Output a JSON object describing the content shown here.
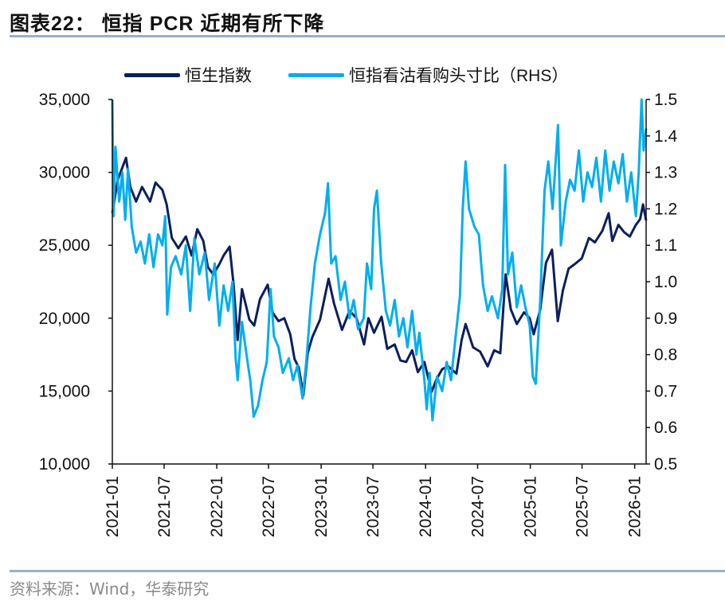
{
  "header": {
    "title": "图表22： 恒指 PCR 近期有所下降"
  },
  "footer": {
    "source": "资料来源：Wind，华泰研究"
  },
  "colors": {
    "hsi": "#0b1f5c",
    "pcr": "#00aeef",
    "rule": "#9aaec8"
  },
  "chart_data": {
    "type": "line",
    "title": "",
    "legend_position": "top",
    "grid": false,
    "x_ticks": [
      "2021-01",
      "2021-07",
      "2022-01",
      "2022-07",
      "2023-01",
      "2023-07",
      "2024-01",
      "2024-07",
      "2025-01",
      "2025-07",
      "2026-01"
    ],
    "xlim": [
      "2021-01-01",
      "2026-02-10"
    ],
    "y_left": {
      "ylim": [
        10000,
        35000
      ],
      "ticks": [
        "10,000",
        "15,000",
        "20,000",
        "25,000",
        "30,000",
        "35,000"
      ],
      "tick_values": [
        10000,
        15000,
        20000,
        25000,
        30000,
        35000
      ]
    },
    "y_right": {
      "ylim": [
        0.5,
        1.5
      ],
      "ticks": [
        "0.5",
        "0.6",
        "0.7",
        "0.8",
        "0.9",
        "1.0",
        "1.1",
        "1.2",
        "1.3",
        "1.4",
        "1.5"
      ],
      "tick_values": [
        0.5,
        0.6,
        0.7,
        0.8,
        0.9,
        1.0,
        1.1,
        1.2,
        1.3,
        1.4,
        1.5
      ]
    },
    "series": [
      {
        "name": "恒生指数",
        "axis": "left",
        "points": [
          [
            "2021-01-01",
            27200
          ],
          [
            "2021-01-20",
            29500
          ],
          [
            "2021-02-18",
            31000
          ],
          [
            "2021-03-05",
            29000
          ],
          [
            "2021-03-25",
            28000
          ],
          [
            "2021-04-15",
            29000
          ],
          [
            "2021-05-13",
            28000
          ],
          [
            "2021-06-01",
            29300
          ],
          [
            "2021-06-25",
            28800
          ],
          [
            "2021-07-10",
            27800
          ],
          [
            "2021-07-28",
            25500
          ],
          [
            "2021-08-20",
            24800
          ],
          [
            "2021-09-15",
            25600
          ],
          [
            "2021-10-05",
            24300
          ],
          [
            "2021-10-25",
            26100
          ],
          [
            "2021-11-15",
            25300
          ],
          [
            "2021-12-01",
            23500
          ],
          [
            "2021-12-20",
            23000
          ],
          [
            "2022-01-10",
            23700
          ],
          [
            "2022-01-25",
            24300
          ],
          [
            "2022-02-15",
            24900
          ],
          [
            "2022-03-01",
            22300
          ],
          [
            "2022-03-15",
            18500
          ],
          [
            "2022-03-30",
            22000
          ],
          [
            "2022-04-25",
            19900
          ],
          [
            "2022-05-12",
            19500
          ],
          [
            "2022-06-01",
            21300
          ],
          [
            "2022-06-28",
            22300
          ],
          [
            "2022-07-15",
            20400
          ],
          [
            "2022-08-05",
            19800
          ],
          [
            "2022-08-25",
            20000
          ],
          [
            "2022-09-15",
            18900
          ],
          [
            "2022-09-30",
            17200
          ],
          [
            "2022-10-15",
            16600
          ],
          [
            "2022-10-31",
            14700
          ],
          [
            "2022-11-15",
            17600
          ],
          [
            "2022-12-01",
            18700
          ],
          [
            "2022-12-28",
            19900
          ],
          [
            "2023-01-27",
            22700
          ],
          [
            "2023-02-15",
            21000
          ],
          [
            "2023-03-15",
            19200
          ],
          [
            "2023-04-10",
            20500
          ],
          [
            "2023-05-05",
            20000
          ],
          [
            "2023-05-31",
            18200
          ],
          [
            "2023-06-15",
            20000
          ],
          [
            "2023-07-05",
            19000
          ],
          [
            "2023-07-31",
            20100
          ],
          [
            "2023-08-20",
            17900
          ],
          [
            "2023-09-15",
            18200
          ],
          [
            "2023-10-05",
            17100
          ],
          [
            "2023-10-25",
            17000
          ],
          [
            "2023-11-15",
            17800
          ],
          [
            "2023-12-05",
            16300
          ],
          [
            "2023-12-28",
            17000
          ],
          [
            "2024-01-22",
            14950
          ],
          [
            "2024-02-08",
            15800
          ],
          [
            "2024-02-28",
            16500
          ],
          [
            "2024-03-20",
            16700
          ],
          [
            "2024-04-18",
            16200
          ],
          [
            "2024-05-06",
            18500
          ],
          [
            "2024-05-20",
            19600
          ],
          [
            "2024-06-15",
            18000
          ],
          [
            "2024-07-10",
            17700
          ],
          [
            "2024-08-05",
            16700
          ],
          [
            "2024-08-28",
            17800
          ],
          [
            "2024-09-18",
            17600
          ],
          [
            "2024-10-07",
            23000
          ],
          [
            "2024-10-25",
            20600
          ],
          [
            "2024-11-15",
            19600
          ],
          [
            "2024-12-10",
            20400
          ],
          [
            "2024-12-30",
            20000
          ],
          [
            "2025-01-13",
            18900
          ],
          [
            "2025-02-05",
            20600
          ],
          [
            "2025-02-25",
            23800
          ],
          [
            "2025-03-18",
            24700
          ],
          [
            "2025-04-07",
            19800
          ],
          [
            "2025-04-25",
            21900
          ],
          [
            "2025-05-15",
            23400
          ],
          [
            "2025-06-05",
            23700
          ],
          [
            "2025-06-30",
            24100
          ],
          [
            "2025-07-25",
            25500
          ],
          [
            "2025-08-15",
            25200
          ],
          [
            "2025-09-10",
            26000
          ],
          [
            "2025-10-02",
            27200
          ],
          [
            "2025-10-15",
            25300
          ],
          [
            "2025-11-05",
            26400
          ],
          [
            "2025-11-25",
            25900
          ],
          [
            "2025-12-15",
            25600
          ],
          [
            "2026-01-05",
            26400
          ],
          [
            "2026-01-20",
            26800
          ],
          [
            "2026-01-30",
            27800
          ],
          [
            "2026-02-10",
            26700
          ]
        ]
      },
      {
        "name": "恒指看沽看购头寸比（RHS）",
        "axis": "right",
        "points": [
          [
            "2021-01-01",
            1.5
          ],
          [
            "2021-01-05",
            1.18
          ],
          [
            "2021-01-12",
            1.37
          ],
          [
            "2021-01-25",
            1.22
          ],
          [
            "2021-02-05",
            1.3
          ],
          [
            "2021-02-15",
            1.17
          ],
          [
            "2021-02-25",
            1.31
          ],
          [
            "2021-03-10",
            1.15
          ],
          [
            "2021-03-25",
            1.08
          ],
          [
            "2021-04-10",
            1.11
          ],
          [
            "2021-04-25",
            1.05
          ],
          [
            "2021-05-10",
            1.13
          ],
          [
            "2021-05-25",
            1.04
          ],
          [
            "2021-06-10",
            1.13
          ],
          [
            "2021-06-25",
            1.1
          ],
          [
            "2021-07-05",
            1.18
          ],
          [
            "2021-07-12",
            0.91
          ],
          [
            "2021-07-25",
            1.04
          ],
          [
            "2021-08-10",
            1.07
          ],
          [
            "2021-08-30",
            1.02
          ],
          [
            "2021-09-15",
            1.1
          ],
          [
            "2021-09-30",
            0.92
          ],
          [
            "2021-10-15",
            1.12
          ],
          [
            "2021-11-01",
            1.02
          ],
          [
            "2021-11-20",
            1.08
          ],
          [
            "2021-12-05",
            0.95
          ],
          [
            "2021-12-25",
            1.05
          ],
          [
            "2022-01-10",
            0.88
          ],
          [
            "2022-01-25",
            0.99
          ],
          [
            "2022-02-10",
            0.92
          ],
          [
            "2022-02-25",
            1.0
          ],
          [
            "2022-03-08",
            0.79
          ],
          [
            "2022-03-15",
            0.73
          ],
          [
            "2022-03-30",
            0.89
          ],
          [
            "2022-04-15",
            0.8
          ],
          [
            "2022-04-28",
            0.73
          ],
          [
            "2022-05-10",
            0.63
          ],
          [
            "2022-05-25",
            0.66
          ],
          [
            "2022-06-10",
            0.73
          ],
          [
            "2022-06-25",
            0.78
          ],
          [
            "2022-07-08",
            0.98
          ],
          [
            "2022-07-20",
            0.85
          ],
          [
            "2022-08-05",
            0.82
          ],
          [
            "2022-08-20",
            0.75
          ],
          [
            "2022-09-10",
            0.79
          ],
          [
            "2022-09-25",
            0.73
          ],
          [
            "2022-10-10",
            0.77
          ],
          [
            "2022-10-28",
            0.68
          ],
          [
            "2022-11-10",
            0.78
          ],
          [
            "2022-11-25",
            0.93
          ],
          [
            "2022-12-10",
            1.05
          ],
          [
            "2022-12-28",
            1.13
          ],
          [
            "2023-01-15",
            1.19
          ],
          [
            "2023-01-25",
            1.27
          ],
          [
            "2023-02-05",
            1.05
          ],
          [
            "2023-02-20",
            1.07
          ],
          [
            "2023-03-10",
            0.95
          ],
          [
            "2023-03-25",
            1.0
          ],
          [
            "2023-04-10",
            0.9
          ],
          [
            "2023-04-25",
            0.95
          ],
          [
            "2023-05-10",
            0.87
          ],
          [
            "2023-05-30",
            0.9
          ],
          [
            "2023-06-10",
            1.05
          ],
          [
            "2023-06-25",
            0.98
          ],
          [
            "2023-07-05",
            1.2
          ],
          [
            "2023-07-15",
            1.25
          ],
          [
            "2023-07-30",
            1.05
          ],
          [
            "2023-08-15",
            0.92
          ],
          [
            "2023-08-30",
            0.88
          ],
          [
            "2023-09-15",
            0.95
          ],
          [
            "2023-09-30",
            0.85
          ],
          [
            "2023-10-15",
            0.9
          ],
          [
            "2023-10-30",
            0.82
          ],
          [
            "2023-11-15",
            0.92
          ],
          [
            "2023-11-30",
            0.8
          ],
          [
            "2023-12-10",
            0.86
          ],
          [
            "2023-12-28",
            0.73
          ],
          [
            "2024-01-05",
            0.65
          ],
          [
            "2024-01-15",
            0.75
          ],
          [
            "2024-01-25",
            0.62
          ],
          [
            "2024-02-10",
            0.74
          ],
          [
            "2024-02-28",
            0.7
          ],
          [
            "2024-03-15",
            0.78
          ],
          [
            "2024-03-30",
            0.73
          ],
          [
            "2024-04-15",
            0.85
          ],
          [
            "2024-04-30",
            0.96
          ],
          [
            "2024-05-10",
            1.2
          ],
          [
            "2024-05-20",
            1.33
          ],
          [
            "2024-06-01",
            1.2
          ],
          [
            "2024-06-20",
            1.15
          ],
          [
            "2024-07-05",
            1.13
          ],
          [
            "2024-07-20",
            0.99
          ],
          [
            "2024-08-05",
            0.92
          ],
          [
            "2024-08-20",
            0.96
          ],
          [
            "2024-09-10",
            0.9
          ],
          [
            "2024-09-25",
            0.98
          ],
          [
            "2024-10-05",
            1.32
          ],
          [
            "2024-10-15",
            1.02
          ],
          [
            "2024-10-30",
            1.08
          ],
          [
            "2024-11-15",
            0.93
          ],
          [
            "2024-11-30",
            0.99
          ],
          [
            "2024-12-15",
            0.93
          ],
          [
            "2024-12-30",
            0.88
          ],
          [
            "2025-01-10",
            0.74
          ],
          [
            "2025-01-20",
            0.72
          ],
          [
            "2025-02-05",
            0.95
          ],
          [
            "2025-02-20",
            1.25
          ],
          [
            "2025-03-05",
            1.33
          ],
          [
            "2025-03-20",
            1.2
          ],
          [
            "2025-04-08",
            1.43
          ],
          [
            "2025-04-18",
            1.1
          ],
          [
            "2025-05-05",
            1.22
          ],
          [
            "2025-05-20",
            1.28
          ],
          [
            "2025-06-05",
            1.25
          ],
          [
            "2025-06-20",
            1.36
          ],
          [
            "2025-07-05",
            1.22
          ],
          [
            "2025-07-20",
            1.3
          ],
          [
            "2025-08-05",
            1.26
          ],
          [
            "2025-08-20",
            1.34
          ],
          [
            "2025-09-05",
            1.22
          ],
          [
            "2025-09-20",
            1.36
          ],
          [
            "2025-10-05",
            1.25
          ],
          [
            "2025-10-20",
            1.33
          ],
          [
            "2025-11-05",
            1.27
          ],
          [
            "2025-11-20",
            1.35
          ],
          [
            "2025-12-05",
            1.22
          ],
          [
            "2025-12-20",
            1.3
          ],
          [
            "2026-01-05",
            1.18
          ],
          [
            "2026-01-15",
            1.3
          ],
          [
            "2026-01-25",
            1.5
          ],
          [
            "2026-02-01",
            1.36
          ],
          [
            "2026-02-10",
            1.42
          ]
        ]
      }
    ]
  }
}
